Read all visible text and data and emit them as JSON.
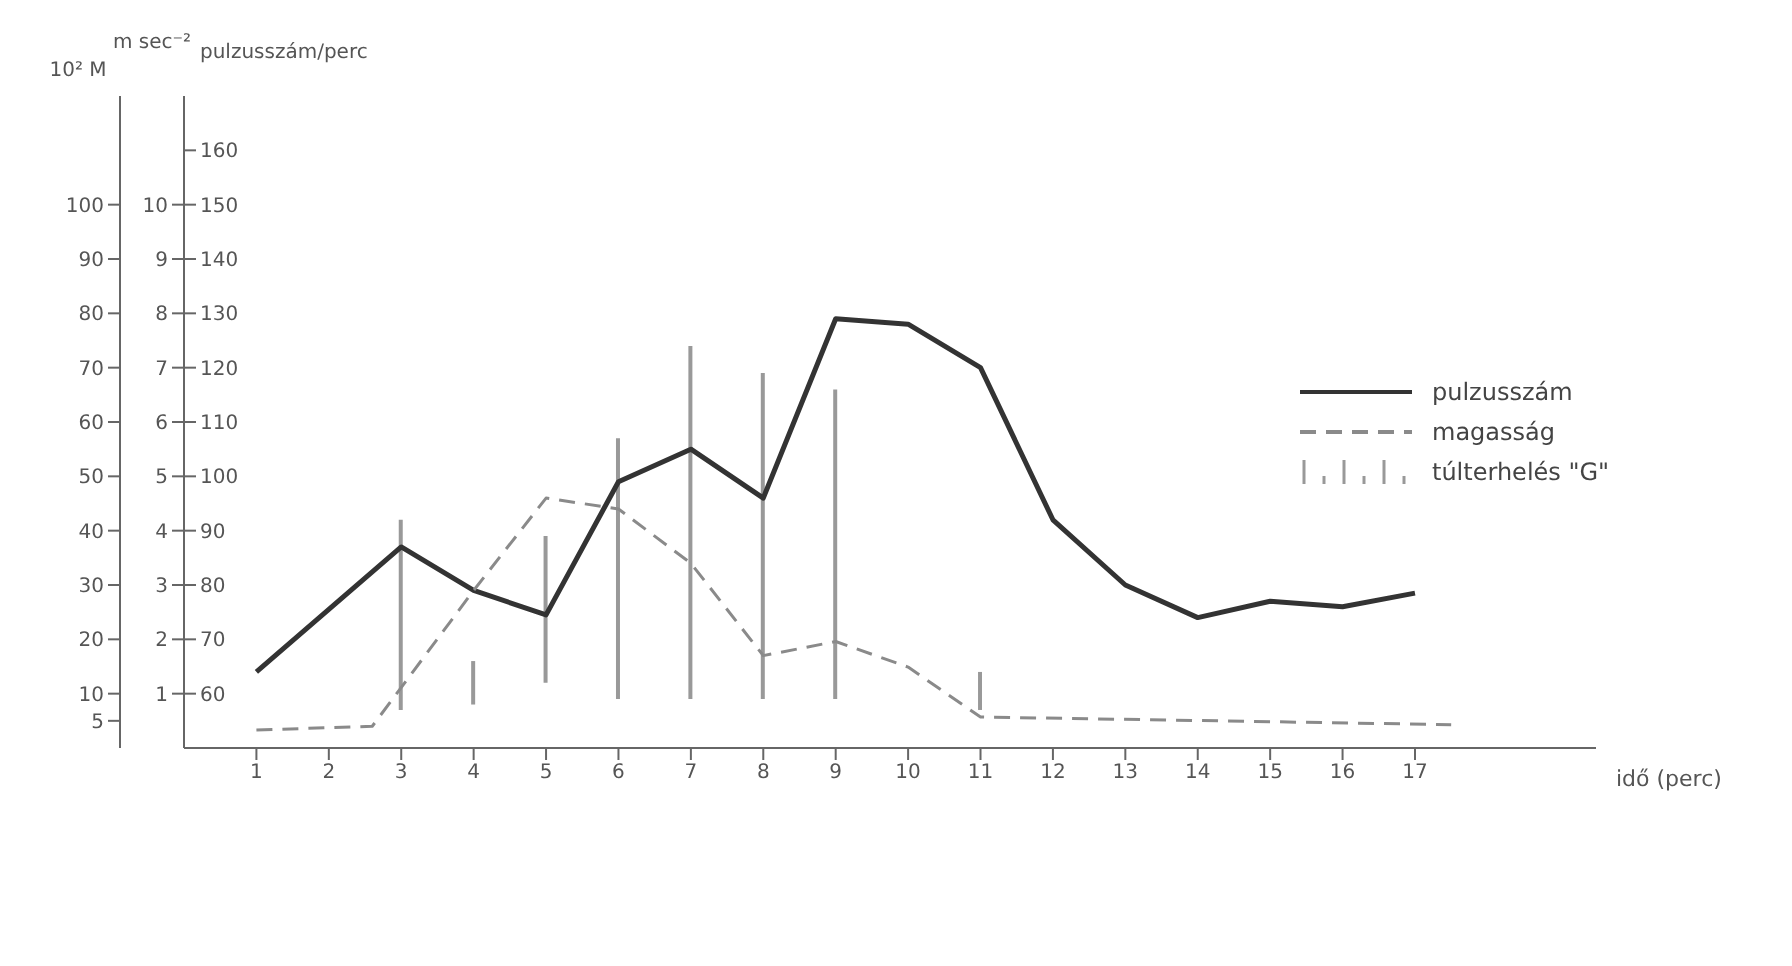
{
  "chart_data": {
    "type": "line",
    "xlabel": "idő (perc)",
    "ylabel": "pulzusszám/perc",
    "y2label": "m sec⁻²",
    "y3label": "10² M",
    "xlim": [
      0,
      19.5
    ],
    "xticks": [
      1,
      2,
      3,
      4,
      5,
      6,
      7,
      8,
      9,
      10,
      11,
      12,
      13,
      14,
      15,
      16,
      17
    ],
    "ylim": [
      50,
      170
    ],
    "yticks": [
      60,
      70,
      80,
      90,
      100,
      110,
      120,
      130,
      140,
      150,
      160
    ],
    "y2lim": [
      0,
      12
    ],
    "y2ticks": [
      1,
      2,
      3,
      4,
      5,
      6,
      7,
      8,
      9,
      10
    ],
    "y3lim": [
      0,
      120
    ],
    "y3ticks": [
      5,
      10,
      20,
      30,
      40,
      50,
      60,
      70,
      80,
      90,
      100
    ],
    "grid": false,
    "legend": "right",
    "marker": "none",
    "series": [
      {
        "name": "pulzusszám",
        "axis": "y",
        "color": "#333333",
        "line_style": "solid",
        "x": [
          1,
          2,
          3,
          4,
          5,
          6,
          7,
          8,
          9,
          10,
          11,
          12,
          13,
          14,
          15,
          16,
          17
        ],
        "values": [
          64,
          75.5,
          87,
          79,
          74.5,
          99,
          105,
          96,
          129,
          128,
          120,
          92,
          80,
          74,
          77,
          76,
          78.5
        ]
      },
      {
        "name": "magasság",
        "axis": "y3",
        "color": "#8a8a8a",
        "line_style": "dashed",
        "x": [
          1,
          2.6,
          4,
          5,
          6,
          7,
          8,
          9,
          10,
          11,
          17.5
        ],
        "values": [
          3.3,
          4.0,
          29,
          46,
          44,
          34,
          17,
          19.6,
          14.9,
          5.7,
          4.3
        ]
      },
      {
        "name": "túlterhelés \"G\"",
        "type": "bar",
        "axis": "y2",
        "color": "#999999",
        "x": [
          3,
          4,
          5,
          6,
          7,
          8,
          9,
          11
        ],
        "base": [
          0.7,
          0.8,
          1.2,
          0.9,
          0.9,
          0.9,
          0.9,
          0.7
        ],
        "values": [
          3.5,
          0.8,
          2.7,
          4.8,
          6.5,
          6.0,
          5.7,
          0.7
        ]
      }
    ]
  }
}
